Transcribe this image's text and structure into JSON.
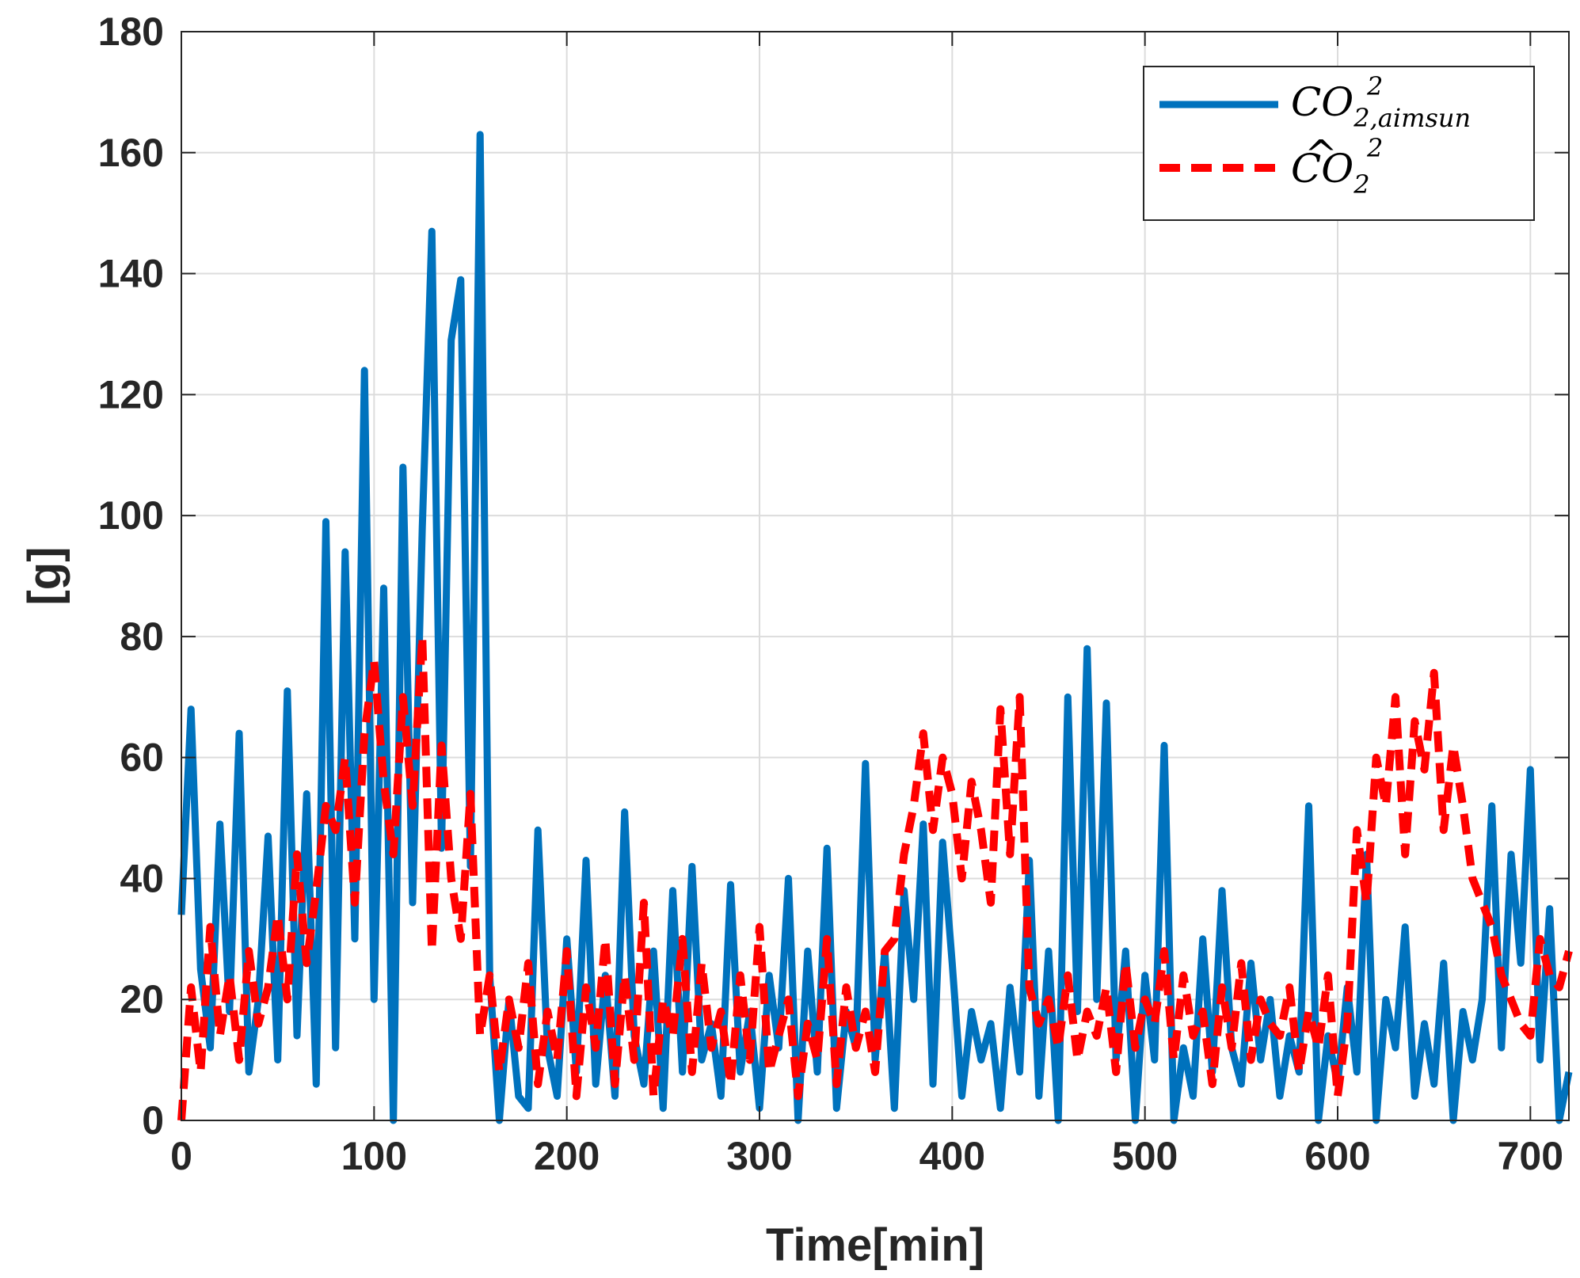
{
  "chart_data": {
    "type": "line",
    "title": "",
    "xlabel": "Time[min]",
    "ylabel": "[g]",
    "xlim": [
      0,
      720
    ],
    "ylim": [
      0,
      180
    ],
    "xticks": [
      0,
      100,
      200,
      300,
      400,
      500,
      600,
      700
    ],
    "yticks": [
      0,
      20,
      40,
      60,
      80,
      100,
      120,
      140,
      160,
      180
    ],
    "grid": true,
    "legend_position": "top-right",
    "series_colors": {
      "aimsun": "#0072BD",
      "estimate": "#FF0000"
    },
    "series": [
      {
        "key": "aimsun",
        "legend_main": "CO",
        "legend_sub": "2,aimsun",
        "legend_sup": "2",
        "style": "solid",
        "x": [
          0,
          5,
          10,
          15,
          20,
          25,
          30,
          35,
          40,
          45,
          50,
          55,
          60,
          65,
          70,
          75,
          80,
          85,
          90,
          95,
          100,
          105,
          110,
          115,
          120,
          125,
          130,
          135,
          140,
          145,
          150,
          155,
          160,
          165,
          170,
          175,
          180,
          185,
          190,
          195,
          200,
          205,
          210,
          215,
          220,
          225,
          230,
          235,
          240,
          245,
          250,
          255,
          260,
          265,
          270,
          275,
          280,
          285,
          290,
          295,
          300,
          305,
          310,
          315,
          320,
          325,
          330,
          335,
          340,
          345,
          350,
          355,
          360,
          365,
          370,
          375,
          380,
          385,
          390,
          395,
          400,
          405,
          410,
          415,
          420,
          425,
          430,
          435,
          440,
          445,
          450,
          455,
          460,
          465,
          470,
          475,
          480,
          485,
          490,
          495,
          500,
          505,
          510,
          515,
          520,
          525,
          530,
          535,
          540,
          545,
          550,
          555,
          560,
          565,
          570,
          575,
          580,
          585,
          590,
          595,
          600,
          605,
          610,
          615,
          620,
          625,
          630,
          635,
          640,
          645,
          650,
          655,
          660,
          665,
          670,
          675,
          680,
          685,
          690,
          695,
          700,
          705,
          710,
          715,
          720
        ],
        "values": [
          34,
          68,
          25,
          12,
          49,
          18,
          64,
          8,
          20,
          47,
          10,
          71,
          14,
          54,
          6,
          99,
          12,
          94,
          30,
          124,
          20,
          88,
          0,
          108,
          36,
          98,
          147,
          45,
          129,
          139,
          42,
          163,
          24,
          0,
          20,
          4,
          2,
          48,
          12,
          4,
          30,
          8,
          43,
          6,
          24,
          4,
          51,
          14,
          6,
          28,
          2,
          38,
          8,
          42,
          10,
          16,
          4,
          39,
          8,
          18,
          2,
          24,
          12,
          40,
          0,
          28,
          8,
          45,
          2,
          18,
          12,
          59,
          10,
          28,
          2,
          38,
          20,
          49,
          6,
          46,
          26,
          4,
          18,
          10,
          16,
          2,
          22,
          8,
          43,
          4,
          28,
          0,
          70,
          18,
          78,
          20,
          69,
          10,
          28,
          0,
          24,
          10,
          62,
          0,
          12,
          4,
          30,
          8,
          38,
          12,
          6,
          26,
          10,
          20,
          4,
          14,
          8,
          52,
          0,
          14,
          6,
          22,
          8,
          44,
          0,
          20,
          12,
          32,
          4,
          16,
          6,
          26,
          0,
          18,
          10,
          20,
          52,
          12,
          44,
          26,
          58,
          10,
          35,
          0,
          8
        ],
        "note_values_pattern": "sampled"
      },
      {
        "key": "estimate",
        "legend_main": "CO",
        "legend_hat": "^",
        "legend_sub": "2",
        "legend_sup": "2",
        "style": "dashed",
        "x": [
          0,
          5,
          10,
          15,
          20,
          25,
          30,
          35,
          40,
          45,
          50,
          55,
          60,
          65,
          70,
          75,
          80,
          85,
          90,
          95,
          100,
          105,
          110,
          115,
          120,
          125,
          130,
          135,
          140,
          145,
          150,
          155,
          160,
          165,
          170,
          175,
          180,
          185,
          190,
          195,
          200,
          205,
          210,
          215,
          220,
          225,
          230,
          235,
          240,
          245,
          250,
          255,
          260,
          265,
          270,
          275,
          280,
          285,
          290,
          295,
          300,
          305,
          310,
          315,
          320,
          325,
          330,
          335,
          340,
          345,
          350,
          355,
          360,
          365,
          370,
          375,
          380,
          385,
          390,
          395,
          400,
          405,
          410,
          415,
          420,
          425,
          430,
          435,
          440,
          445,
          450,
          455,
          460,
          465,
          470,
          475,
          480,
          485,
          490,
          495,
          500,
          505,
          510,
          515,
          520,
          525,
          530,
          535,
          540,
          545,
          550,
          555,
          560,
          565,
          570,
          575,
          580,
          585,
          590,
          595,
          600,
          605,
          610,
          615,
          620,
          625,
          630,
          635,
          640,
          645,
          650,
          655,
          660,
          665,
          670,
          675,
          680,
          685,
          690,
          695,
          700,
          705,
          710,
          715,
          720
        ],
        "values": [
          0,
          22,
          8,
          32,
          14,
          24,
          10,
          28,
          16,
          22,
          34,
          20,
          44,
          26,
          38,
          52,
          48,
          60,
          36,
          64,
          76,
          56,
          44,
          70,
          52,
          80,
          28,
          62,
          40,
          30,
          54,
          14,
          24,
          8,
          20,
          12,
          26,
          6,
          18,
          10,
          28,
          4,
          22,
          12,
          30,
          6,
          24,
          10,
          36,
          4,
          20,
          14,
          30,
          8,
          26,
          12,
          18,
          6,
          24,
          10,
          32,
          8,
          14,
          20,
          4,
          16,
          10,
          30,
          6,
          22,
          12,
          18,
          8,
          28,
          30,
          44,
          52,
          64,
          48,
          60,
          54,
          40,
          56,
          48,
          36,
          68,
          44,
          70,
          22,
          16,
          20,
          12,
          24,
          10,
          18,
          14,
          22,
          8,
          26,
          12,
          20,
          16,
          28,
          10,
          24,
          14,
          18,
          6,
          22,
          12,
          26,
          10,
          20,
          16,
          14,
          22,
          8,
          18,
          12,
          24,
          4,
          16,
          48,
          36,
          60,
          52,
          70,
          44,
          66,
          58,
          74,
          48,
          62,
          52,
          40,
          36,
          32,
          24,
          20,
          16,
          14,
          30,
          24,
          22,
          28
        ],
        "note_values_pattern": "sampled"
      }
    ]
  }
}
